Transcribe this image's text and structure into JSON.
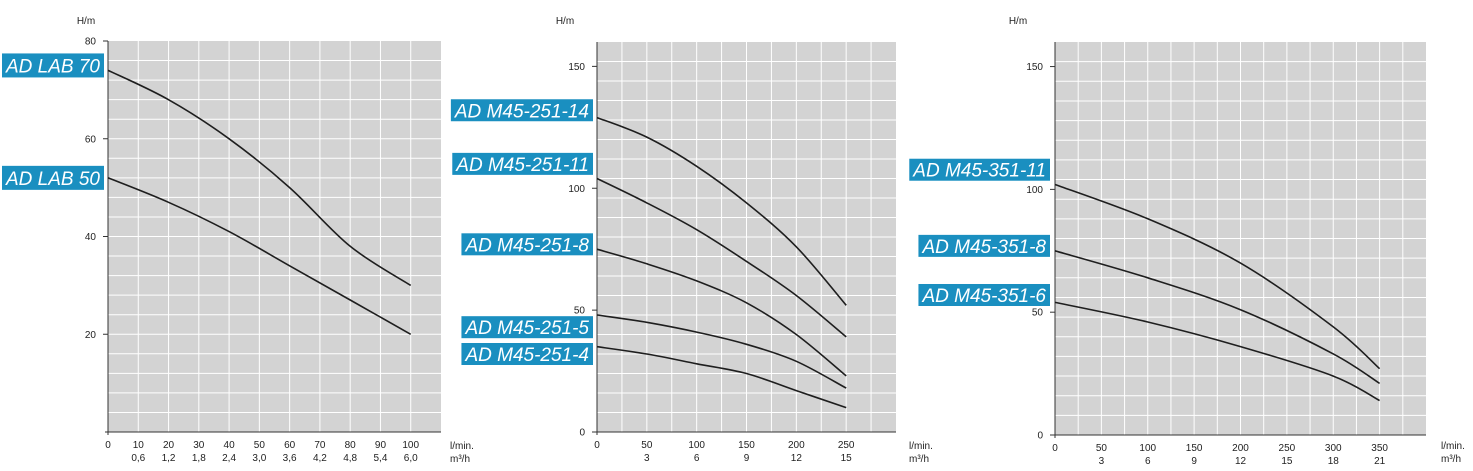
{
  "colors": {
    "plot_bg": "#d3d3d3",
    "grid": "#ffffff",
    "curve": "#1e1e1e",
    "label_bg": "#1a8fc0",
    "label_text": "#ffffff"
  },
  "chart_data": [
    {
      "type": "line",
      "ylabel": "H/m",
      "xlabel": "l/min.",
      "xlabel2": "m³/h",
      "ylim": [
        0,
        80
      ],
      "xlim": [
        0,
        110
      ],
      "y_ticks": [
        20,
        40,
        60,
        80
      ],
      "x_ticks": [
        0,
        10,
        20,
        30,
        40,
        50,
        60,
        70,
        80,
        90,
        100
      ],
      "x_ticks_labels": [
        "0",
        "10",
        "20",
        "30",
        "40",
        "50",
        "60",
        "70",
        "80",
        "90",
        "100"
      ],
      "x2_ticks": [
        10,
        20,
        30,
        40,
        50,
        60,
        70,
        80,
        90,
        100
      ],
      "x2_ticks_labels": [
        "0,6",
        "1,2",
        "1,8",
        "2,4",
        "3,0",
        "3,6",
        "4,2",
        "4,8",
        "5,4",
        "6,0"
      ],
      "grid": true,
      "grid_x_step": 10,
      "grid_y_step": 4,
      "series": [
        {
          "name": "AD LAB 70",
          "x": [
            0,
            20,
            40,
            60,
            80,
            100
          ],
          "y": [
            74,
            68,
            60,
            50,
            38,
            30
          ]
        },
        {
          "name": "AD LAB 50",
          "x": [
            0,
            20,
            40,
            60,
            80,
            100
          ],
          "y": [
            52,
            47,
            41,
            34,
            27,
            20
          ]
        }
      ],
      "labels": [
        {
          "text": "AD LAB 70",
          "y": 75
        },
        {
          "text": "AD LAB 50",
          "y": 52
        }
      ]
    },
    {
      "type": "line",
      "ylabel": "H/m",
      "xlabel": "l/min.",
      "xlabel2": "m³/h",
      "ylim": [
        0,
        160
      ],
      "xlim": [
        0,
        300
      ],
      "y_ticks": [
        0,
        50,
        100,
        150
      ],
      "x_ticks": [
        0,
        50,
        100,
        150,
        200,
        250
      ],
      "x_ticks_labels": [
        "0",
        "50",
        "100",
        "150",
        "200",
        "250"
      ],
      "x2_ticks": [
        50,
        100,
        150,
        200,
        250
      ],
      "x2_ticks_labels": [
        "3",
        "6",
        "9",
        "12",
        "15"
      ],
      "grid": true,
      "grid_x_step": 25,
      "grid_y_step": 8,
      "series": [
        {
          "name": "AD M45-251-14",
          "x": [
            0,
            50,
            100,
            150,
            200,
            250
          ],
          "y": [
            129,
            121,
            109,
            94,
            76,
            52
          ]
        },
        {
          "name": "AD M45-251-11",
          "x": [
            0,
            50,
            100,
            150,
            200,
            250
          ],
          "y": [
            104,
            94,
            83,
            70,
            56,
            39
          ]
        },
        {
          "name": "AD M45-251-8",
          "x": [
            0,
            50,
            100,
            150,
            200,
            250
          ],
          "y": [
            75,
            69,
            62,
            53,
            40,
            23
          ]
        },
        {
          "name": "AD M45-251-5",
          "x": [
            0,
            50,
            100,
            150,
            200,
            250
          ],
          "y": [
            48,
            45,
            41,
            36,
            29,
            18
          ]
        },
        {
          "name": "AD M45-251-4",
          "x": [
            0,
            50,
            100,
            150,
            200,
            250
          ],
          "y": [
            35,
            32,
            28,
            24,
            17,
            10
          ]
        }
      ],
      "labels": [
        {
          "text": "AD M45-251-14",
          "y": 132
        },
        {
          "text": "AD M45-251-11",
          "y": 110
        },
        {
          "text": "AD M45-251-8",
          "y": 77
        },
        {
          "text": "AD M45-251-5",
          "y": 43
        },
        {
          "text": "AD M45-251-4",
          "y": 32
        }
      ]
    },
    {
      "type": "line",
      "ylabel": "H/m",
      "xlabel": "l/min.",
      "xlabel2": "m³/h",
      "ylim": [
        0,
        160
      ],
      "xlim": [
        0,
        400
      ],
      "y_ticks": [
        0,
        50,
        100,
        150
      ],
      "x_ticks": [
        0,
        50,
        100,
        150,
        200,
        250,
        300,
        350
      ],
      "x_ticks_labels": [
        "0",
        "50",
        "100",
        "150",
        "200",
        "250",
        "300",
        "350"
      ],
      "x2_ticks": [
        50,
        100,
        150,
        200,
        250,
        300,
        350
      ],
      "x2_ticks_labels": [
        "3",
        "6",
        "9",
        "12",
        "15",
        "18",
        "21"
      ],
      "grid": true,
      "grid_x_step": 25,
      "grid_y_step": 8,
      "series": [
        {
          "name": "AD M45-351-11",
          "x": [
            0,
            100,
            200,
            300,
            350
          ],
          "y": [
            102,
            88,
            70,
            44,
            27
          ]
        },
        {
          "name": "AD M45-351-8",
          "x": [
            0,
            100,
            200,
            300,
            350
          ],
          "y": [
            75,
            64,
            51,
            33,
            21
          ]
        },
        {
          "name": "AD M45-351-6",
          "x": [
            0,
            100,
            200,
            300,
            350
          ],
          "y": [
            54,
            46,
            36,
            24,
            14
          ]
        }
      ],
      "labels": [
        {
          "text": "AD M45-351-11",
          "y": 108
        },
        {
          "text": "AD M45-351-8",
          "y": 77
        },
        {
          "text": "AD M45-351-6",
          "y": 57
        }
      ]
    }
  ]
}
